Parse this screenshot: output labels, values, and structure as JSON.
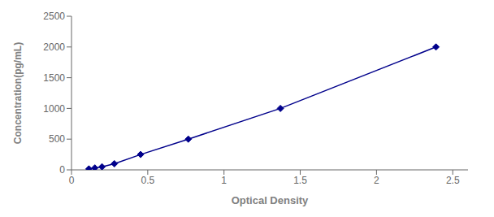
{
  "chart_data": {
    "type": "line",
    "x": [
      0.114,
      0.153,
      0.2,
      0.281,
      0.453,
      0.766,
      1.37,
      2.39
    ],
    "values": [
      15,
      31,
      50,
      100,
      250,
      500,
      1000,
      2000
    ],
    "color": "#00008B",
    "marker": "diamond",
    "xlabel": "Optical Density",
    "ylabel": "Concentration(pg/mL)",
    "xlim": [
      0.0,
      2.6
    ],
    "ylim": [
      0,
      2500
    ],
    "xticks": [
      0,
      0.5,
      1,
      1.5,
      2,
      2.5
    ],
    "yticks": [
      0,
      500,
      1000,
      1500,
      2000,
      2500
    ],
    "grid": false
  }
}
